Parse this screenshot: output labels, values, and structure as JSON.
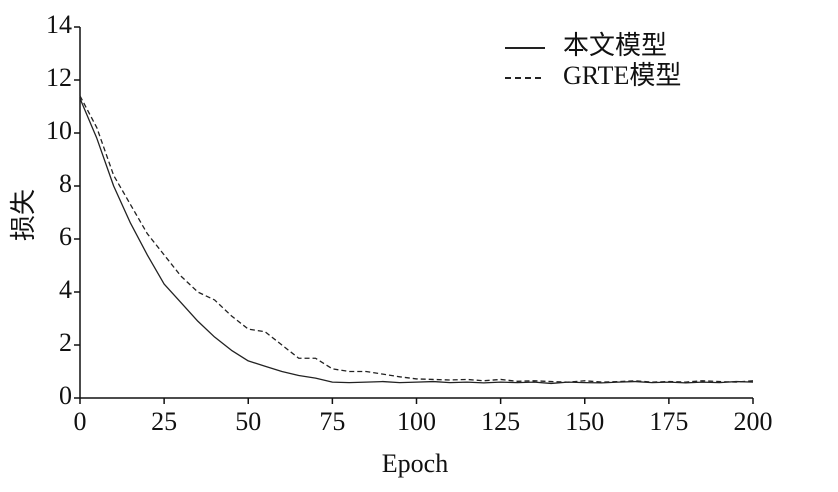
{
  "chart_data": {
    "type": "line",
    "x_label": "Epoch",
    "y_label": "损失",
    "x": [
      0,
      5,
      10,
      15,
      20,
      25,
      30,
      35,
      40,
      45,
      50,
      55,
      60,
      65,
      70,
      75,
      80,
      85,
      90,
      95,
      100,
      105,
      110,
      115,
      120,
      125,
      130,
      135,
      140,
      145,
      150,
      155,
      160,
      165,
      170,
      175,
      180,
      185,
      190,
      195,
      200
    ],
    "series": [
      {
        "name": "本文模型",
        "color": "#222222",
        "style": "solid",
        "values": [
          11.3,
          9.8,
          8.0,
          6.6,
          5.4,
          4.3,
          3.6,
          2.9,
          2.3,
          1.8,
          1.4,
          1.2,
          1.0,
          0.85,
          0.75,
          0.6,
          0.58,
          0.6,
          0.62,
          0.58,
          0.6,
          0.62,
          0.58,
          0.6,
          0.57,
          0.6,
          0.58,
          0.6,
          0.55,
          0.6,
          0.58,
          0.57,
          0.6,
          0.62,
          0.58,
          0.6,
          0.57,
          0.6,
          0.58,
          0.62,
          0.6
        ]
      },
      {
        "name": "GRTE模型",
        "color": "#222222",
        "style": "dashed",
        "values": [
          11.4,
          10.2,
          8.4,
          7.3,
          6.2,
          5.4,
          4.6,
          4.0,
          3.7,
          3.1,
          2.6,
          2.5,
          2.0,
          1.5,
          1.5,
          1.1,
          1.0,
          1.0,
          0.9,
          0.8,
          0.72,
          0.7,
          0.68,
          0.7,
          0.65,
          0.7,
          0.63,
          0.65,
          0.62,
          0.6,
          0.65,
          0.6,
          0.62,
          0.65,
          0.6,
          0.62,
          0.6,
          0.65,
          0.62,
          0.6,
          0.65
        ]
      }
    ],
    "xlim": [
      0,
      200
    ],
    "xticks": [
      0,
      25,
      50,
      75,
      100,
      125,
      150,
      175,
      200
    ],
    "ylim": [
      0,
      14
    ],
    "yticks": [
      0,
      2,
      4,
      6,
      8,
      10,
      12,
      14
    ],
    "legend": "upper right",
    "grid": false
  }
}
